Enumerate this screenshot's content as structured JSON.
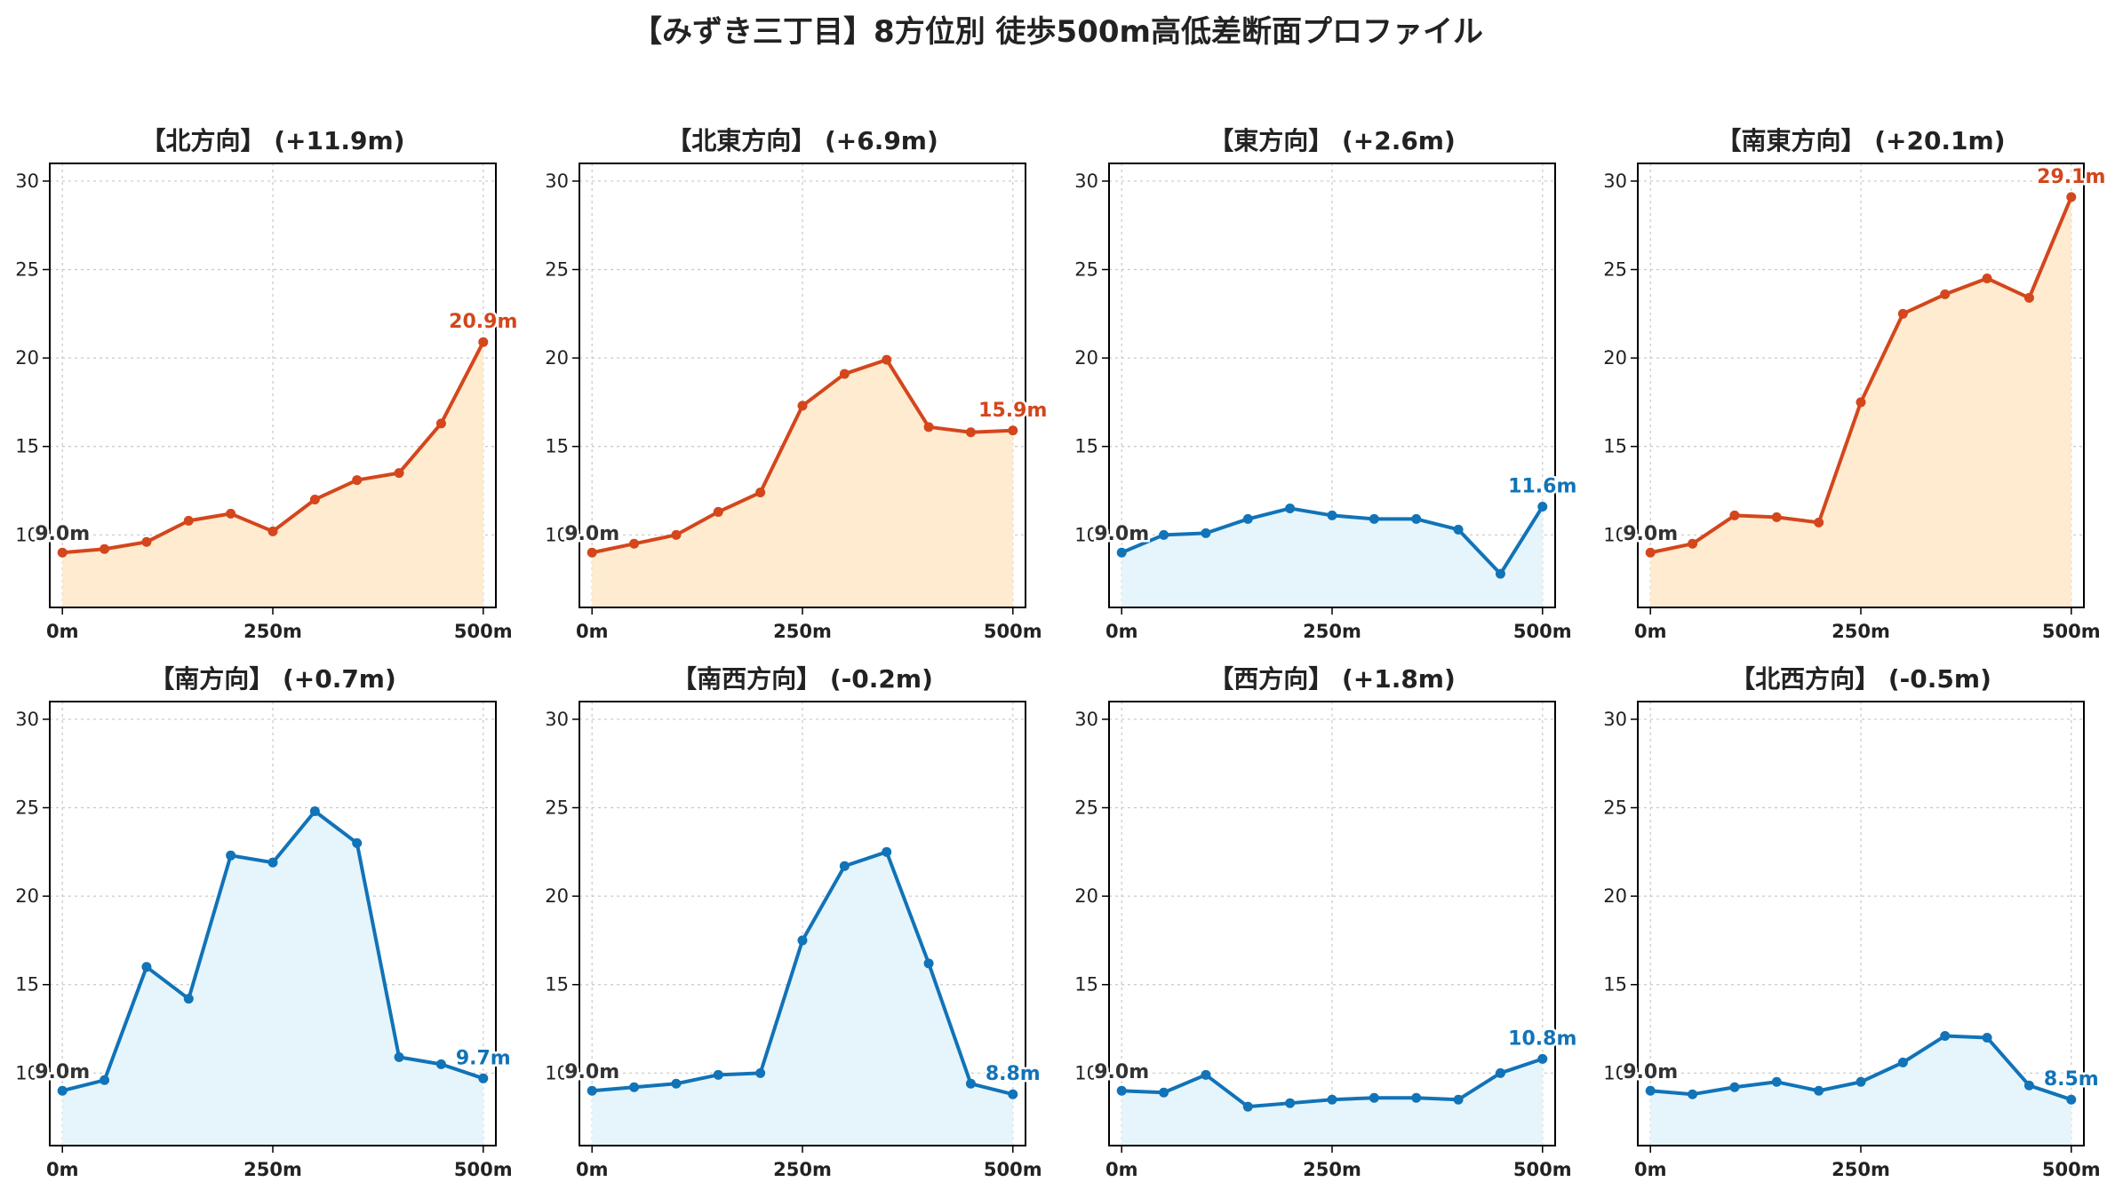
{
  "figure": {
    "title": "【みずき三丁目】8方位別 徒歩500m高低差断面プロファイル"
  },
  "colors": {
    "up_line": "#d4461c",
    "up_fill": "#feebd0",
    "down_line": "#1173b8",
    "down_fill": "#e6f5fb",
    "grid": "#c8c8c8",
    "text": "#222222"
  },
  "chart_data": [
    {
      "type": "area",
      "title": "【北方向】 (+11.9m)",
      "trend": "up",
      "x": [
        0,
        50,
        100,
        150,
        200,
        250,
        300,
        350,
        400,
        450,
        500
      ],
      "y": [
        9.0,
        9.2,
        9.6,
        10.8,
        11.2,
        10.2,
        12.0,
        13.1,
        13.5,
        16.3,
        20.9
      ],
      "start_label": "9.0m",
      "end_label": "20.9m",
      "xticks": [
        "0m",
        "250m",
        "500m"
      ],
      "yticks": [
        10,
        15,
        20,
        25,
        30
      ],
      "xlim": [
        -15,
        515
      ],
      "ylim": [
        5.9,
        31
      ],
      "grid": true
    },
    {
      "type": "area",
      "title": "【北東方向】 (+6.9m)",
      "trend": "up",
      "x": [
        0,
        50,
        100,
        150,
        200,
        250,
        300,
        350,
        400,
        450,
        500
      ],
      "y": [
        9.0,
        9.5,
        10.0,
        11.3,
        12.4,
        17.3,
        19.1,
        19.9,
        16.1,
        15.8,
        15.9
      ],
      "start_label": "9.0m",
      "end_label": "15.9m",
      "xticks": [
        "0m",
        "250m",
        "500m"
      ],
      "yticks": [
        10,
        15,
        20,
        25,
        30
      ],
      "xlim": [
        -15,
        515
      ],
      "ylim": [
        5.9,
        31
      ],
      "grid": true
    },
    {
      "type": "area",
      "title": "【東方向】 (+2.6m)",
      "trend": "down",
      "x": [
        0,
        50,
        100,
        150,
        200,
        250,
        300,
        350,
        400,
        450,
        500
      ],
      "y": [
        9.0,
        10.0,
        10.1,
        10.9,
        11.5,
        11.1,
        10.9,
        10.9,
        10.3,
        7.8,
        11.6
      ],
      "start_label": "9.0m",
      "end_label": "11.6m",
      "xticks": [
        "0m",
        "250m",
        "500m"
      ],
      "yticks": [
        10,
        15,
        20,
        25,
        30
      ],
      "xlim": [
        -15,
        515
      ],
      "ylim": [
        5.9,
        31
      ],
      "grid": true
    },
    {
      "type": "area",
      "title": "【南東方向】 (+20.1m)",
      "trend": "up",
      "x": [
        0,
        50,
        100,
        150,
        200,
        250,
        300,
        350,
        400,
        450,
        500
      ],
      "y": [
        9.0,
        9.5,
        11.1,
        11.0,
        10.7,
        17.5,
        22.5,
        23.6,
        24.5,
        23.4,
        29.1
      ],
      "start_label": "9.0m",
      "end_label": "29.1m",
      "xticks": [
        "0m",
        "250m",
        "500m"
      ],
      "yticks": [
        10,
        15,
        20,
        25,
        30
      ],
      "xlim": [
        -15,
        515
      ],
      "ylim": [
        5.9,
        31
      ],
      "grid": true
    },
    {
      "type": "area",
      "title": "【南方向】 (+0.7m)",
      "trend": "down",
      "x": [
        0,
        50,
        100,
        150,
        200,
        250,
        300,
        350,
        400,
        450,
        500
      ],
      "y": [
        9.0,
        9.6,
        16.0,
        14.2,
        22.3,
        21.9,
        24.8,
        23.0,
        10.9,
        10.5,
        9.7
      ],
      "start_label": "9.0m",
      "end_label": "9.7m",
      "xticks": [
        "0m",
        "250m",
        "500m"
      ],
      "yticks": [
        10,
        15,
        20,
        25,
        30
      ],
      "xlim": [
        -15,
        515
      ],
      "ylim": [
        5.9,
        31
      ],
      "grid": true
    },
    {
      "type": "area",
      "title": "【南西方向】 (-0.2m)",
      "trend": "down",
      "x": [
        0,
        50,
        100,
        150,
        200,
        250,
        300,
        350,
        400,
        450,
        500
      ],
      "y": [
        9.0,
        9.2,
        9.4,
        9.9,
        10.0,
        17.5,
        21.7,
        22.5,
        16.2,
        9.4,
        8.8
      ],
      "start_label": "9.0m",
      "end_label": "8.8m",
      "xticks": [
        "0m",
        "250m",
        "500m"
      ],
      "yticks": [
        10,
        15,
        20,
        25,
        30
      ],
      "xlim": [
        -15,
        515
      ],
      "ylim": [
        5.9,
        31
      ],
      "grid": true
    },
    {
      "type": "area",
      "title": "【西方向】 (+1.8m)",
      "trend": "down",
      "x": [
        0,
        50,
        100,
        150,
        200,
        250,
        300,
        350,
        400,
        450,
        500
      ],
      "y": [
        9.0,
        8.9,
        9.9,
        8.1,
        8.3,
        8.5,
        8.6,
        8.6,
        8.5,
        10.0,
        10.8
      ],
      "start_label": "9.0m",
      "end_label": "10.8m",
      "xticks": [
        "0m",
        "250m",
        "500m"
      ],
      "yticks": [
        10,
        15,
        20,
        25,
        30
      ],
      "xlim": [
        -15,
        515
      ],
      "ylim": [
        5.9,
        31
      ],
      "grid": true
    },
    {
      "type": "area",
      "title": "【北西方向】 (-0.5m)",
      "trend": "down",
      "x": [
        0,
        50,
        100,
        150,
        200,
        250,
        300,
        350,
        400,
        450,
        500
      ],
      "y": [
        9.0,
        8.8,
        9.2,
        9.5,
        9.0,
        9.5,
        10.6,
        12.1,
        12.0,
        9.3,
        8.5
      ],
      "start_label": "9.0m",
      "end_label": "8.5m",
      "xticks": [
        "0m",
        "250m",
        "500m"
      ],
      "yticks": [
        10,
        15,
        20,
        25,
        30
      ],
      "xlim": [
        -15,
        515
      ],
      "ylim": [
        5.9,
        31
      ],
      "grid": true
    }
  ]
}
